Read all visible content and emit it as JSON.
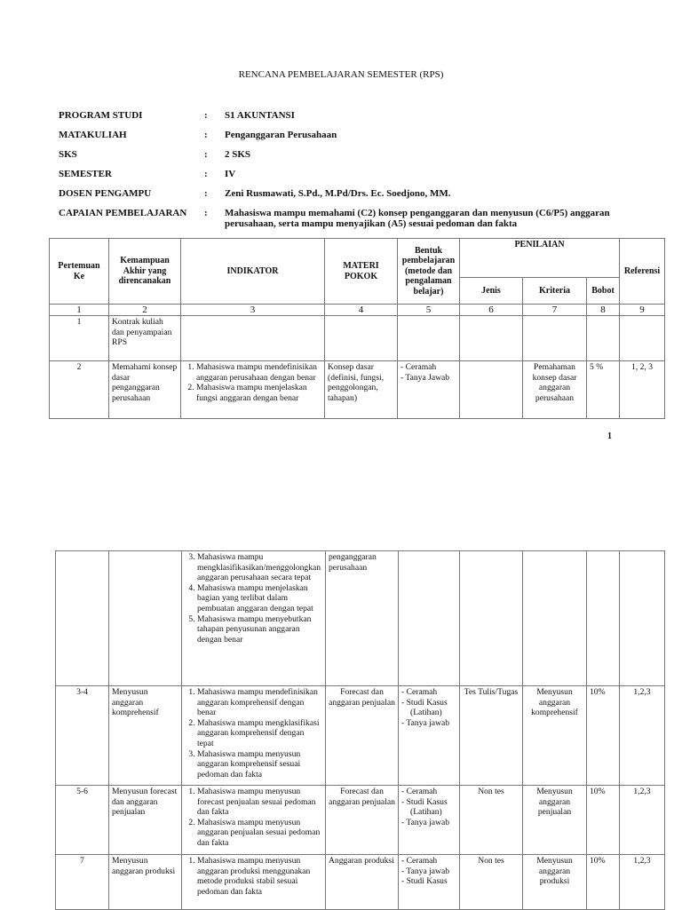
{
  "title": "RENCANA PEMBELAJARAN SEMESTER (RPS)",
  "info": [
    {
      "label": "PROGRAM STUDI",
      "value": "S1 AKUNTANSI"
    },
    {
      "label": "MATAKULIAH",
      "value": "Penganggaran Perusahaan"
    },
    {
      "label": "SKS",
      "value": "2 SKS"
    },
    {
      "label": "SEMESTER",
      "value": "IV"
    },
    {
      "label": "DOSEN PENGAMPU",
      "value": "Zeni Rusmawati, S.Pd., M.Pd/Drs. Ec. Soedjono, MM."
    },
    {
      "label": "CAPAIAN PEMBELAJARAN",
      "value": "Mahasiswa mampu memahami (C2) konsep penganggaran dan menyusun (C6/P5) anggaran perusahaan, serta mampu menyajikan (A5) sesuai pedoman dan fakta"
    }
  ],
  "colon": ":",
  "headers": {
    "pertemuan": "Pertemuan Ke",
    "kemampuan": "Kemampuan Akhir yang direncanakan",
    "indikator": "INDIKATOR",
    "materi": "MATERI POKOK",
    "bentuk": "Bentuk pembelajaran (metode dan pengalaman belajar)",
    "penilaian": "PENILAIAN",
    "jenis": "Jenis",
    "kriteria": "Kriteria",
    "bobot": "Bobot",
    "referensi": "Referensi"
  },
  "col_numbers": [
    "1",
    "2",
    "3",
    "4",
    "5",
    "6",
    "7",
    "8",
    "9"
  ],
  "page_number": "1",
  "rows": [
    {
      "no": "1",
      "kemampuan": "Kontrak kuliah dan penyampaian RPS",
      "indikator": [],
      "materi": "",
      "bentuk": [],
      "jenis": "",
      "kriteria": "",
      "bobot": "",
      "ref": ""
    },
    {
      "no": "2",
      "kemampuan": "Memahami konsep dasar penganggaran perusahaan",
      "indikator": [
        "Mahasiswa mampu mendefinisikan anggaran perusahaan dengan benar",
        "Mahasiswa mampu menjelaskan fungsi anggaran dengan benar"
      ],
      "materi": "Konsep dasar (definisi, fungsi, penggolongan, tahapan)",
      "bentuk": [
        "Ceramah",
        "Tanya Jawab"
      ],
      "jenis": "",
      "kriteria": "Pemahaman konsep dasar anggaran perusahaan",
      "bobot": "5 %",
      "ref": "1, 2, 3"
    }
  ],
  "rows_page2": [
    {
      "no": "",
      "kemampuan": "",
      "indikator_start": 3,
      "indikator": [
        "Mahasiswa mampu mengklasifikasikan/menggolongkan anggaran perusahaan secara tepat",
        "Mahasiswa mampu menjelaskan bagian yang terlibat dalam pembuatan  anggaran dengan tepat",
        "Mahasiswa mampu menyebutkan tahapan penyusunan anggaran dengan benar"
      ],
      "materi": "penganggaran perusahaan",
      "bentuk": [],
      "jenis": "",
      "kriteria": "",
      "bobot": "",
      "ref": ""
    },
    {
      "no": "3-4",
      "kemampuan": "Menyusun anggaran komprehensif",
      "indikator_start": 1,
      "indikator": [
        "Mahasiswa mampu mendefinisikan anggaran komprehensif dengan benar",
        "Mahasiswa mampu mengklasifikasi anggaran komprehensif dengan tepat",
        "Mahasiswa mampu menyusun anggaran komprehensif sesuai pedoman dan fakta"
      ],
      "materi": "Forecast dan anggaran penjualan",
      "bentuk": [
        "Ceramah",
        "Studi Kasus (Latihan)",
        "Tanya jawab"
      ],
      "jenis": "Tes Tulis/Tugas",
      "kriteria": "Menyusun anggaran komprehensif",
      "bobot": "10%",
      "ref": "1,2,3"
    },
    {
      "no": "5-6",
      "kemampuan": "Menyusun forecast dan anggaran penjualan",
      "indikator_start": 1,
      "indikator": [
        "Mahasiswa mampu menyusun forecast penjualan sesuai pedoman dan fakta",
        "Mahasiswa mampu menyusun anggaran penjualan sesuai pedoman dan fakta"
      ],
      "materi": "Forecast dan anggaran penjualan",
      "bentuk": [
        "Ceramah",
        "Studi Kasus (Latihan)",
        "Tanya jawab"
      ],
      "jenis": "Non tes",
      "kriteria": "Menyusun anggaran penjualan",
      "bobot": "10%",
      "ref": "1,2,3"
    },
    {
      "no": "7",
      "kemampuan": "Menyusun anggaran produksi",
      "indikator_start": 1,
      "indikator": [
        "Mahasiswa mampu menyusun anggaran produksi menggunakan metode produksi stabil sesuai pedoman dan fakta"
      ],
      "materi": "Anggaran produksi",
      "bentuk": [
        "Ceramah",
        "Tanya jawab",
        "Studi Kasus"
      ],
      "jenis": "Non tes",
      "kriteria": "Menyusun anggaran produksi",
      "bobot": "10%",
      "ref": "1,2,3"
    }
  ]
}
